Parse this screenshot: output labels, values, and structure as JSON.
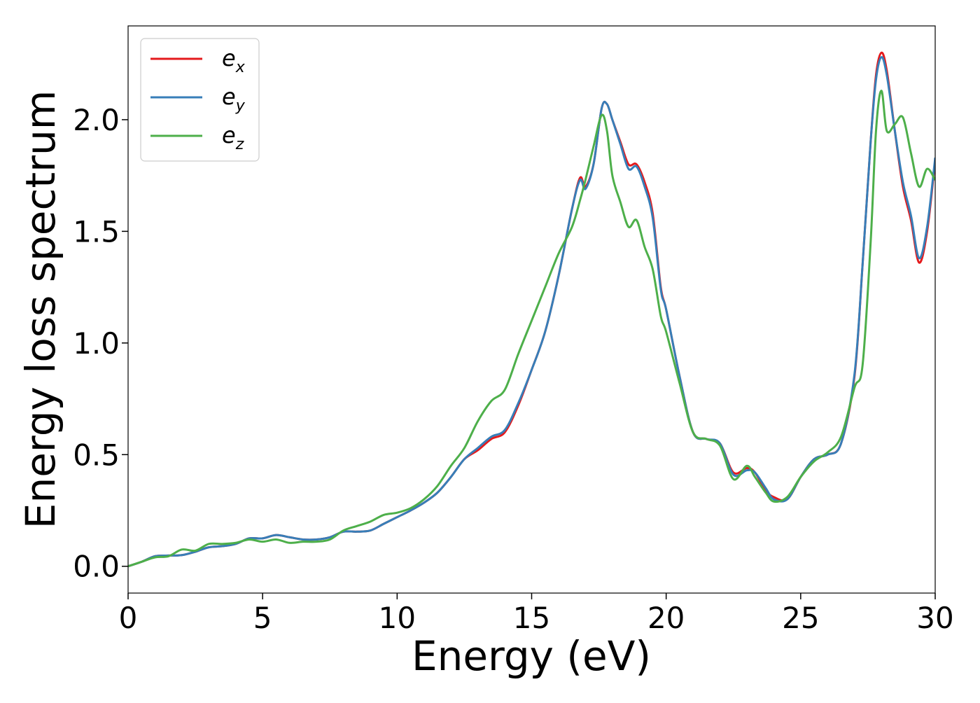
{
  "chart_data": {
    "type": "line",
    "title": "",
    "xlabel": "Energy (eV)",
    "ylabel": "Energy loss spectrum",
    "xlim": [
      0,
      30
    ],
    "ylim": [
      -0.12,
      2.42
    ],
    "xticks": [
      0,
      5,
      10,
      15,
      20,
      25,
      30
    ],
    "xtick_labels": [
      "0",
      "5",
      "10",
      "15",
      "20",
      "25",
      "30"
    ],
    "yticks": [
      0.0,
      0.5,
      1.0,
      1.5,
      2.0
    ],
    "ytick_labels": [
      "0.0",
      "0.5",
      "1.0",
      "1.5",
      "2.0"
    ],
    "grid": false,
    "legend_position": "top-left",
    "x": [
      0,
      0.5,
      1,
      1.5,
      2,
      2.5,
      3,
      3.5,
      4,
      4.5,
      5,
      5.5,
      6,
      6.5,
      7,
      7.5,
      8,
      8.5,
      9,
      9.5,
      10,
      10.5,
      11,
      11.5,
      12,
      12.5,
      13,
      13.5,
      14,
      14.5,
      15,
      15.5,
      16,
      16.5,
      16.8,
      17,
      17.3,
      17.6,
      17.8,
      18,
      18.3,
      18.6,
      18.9,
      19.2,
      19.5,
      19.8,
      20,
      20.5,
      21,
      21.5,
      22,
      22.5,
      23,
      23.3,
      23.7,
      24,
      24.5,
      25,
      25.5,
      26,
      26.5,
      27,
      27.3,
      27.6,
      27.8,
      28,
      28.2,
      28.5,
      28.8,
      29.1,
      29.4,
      29.7,
      30
    ],
    "series": [
      {
        "name": "e_x",
        "label_base": "e",
        "label_sub": "x",
        "color": "#e41a1c",
        "values": [
          0.0,
          0.02,
          0.045,
          0.048,
          0.05,
          0.065,
          0.085,
          0.09,
          0.1,
          0.125,
          0.125,
          0.14,
          0.13,
          0.12,
          0.12,
          0.13,
          0.155,
          0.155,
          0.16,
          0.19,
          0.22,
          0.25,
          0.285,
          0.33,
          0.4,
          0.48,
          0.52,
          0.57,
          0.6,
          0.72,
          0.88,
          1.05,
          1.3,
          1.6,
          1.74,
          1.7,
          1.8,
          2.05,
          2.07,
          2.0,
          1.9,
          1.8,
          1.8,
          1.72,
          1.58,
          1.25,
          1.15,
          0.85,
          0.6,
          0.57,
          0.55,
          0.42,
          0.44,
          0.42,
          0.34,
          0.31,
          0.3,
          0.4,
          0.48,
          0.5,
          0.55,
          0.85,
          1.35,
          1.9,
          2.2,
          2.3,
          2.22,
          1.95,
          1.7,
          1.55,
          1.36,
          1.5,
          1.82
        ]
      },
      {
        "name": "e_y",
        "label_base": "e",
        "label_sub": "y",
        "color": "#377eb8",
        "values": [
          0.0,
          0.02,
          0.045,
          0.048,
          0.05,
          0.065,
          0.085,
          0.09,
          0.1,
          0.125,
          0.125,
          0.14,
          0.13,
          0.12,
          0.12,
          0.13,
          0.155,
          0.155,
          0.16,
          0.19,
          0.22,
          0.25,
          0.285,
          0.33,
          0.4,
          0.48,
          0.53,
          0.58,
          0.61,
          0.73,
          0.88,
          1.05,
          1.3,
          1.6,
          1.73,
          1.69,
          1.8,
          2.05,
          2.07,
          2.0,
          1.89,
          1.78,
          1.79,
          1.7,
          1.56,
          1.24,
          1.15,
          0.85,
          0.6,
          0.57,
          0.55,
          0.41,
          0.43,
          0.42,
          0.35,
          0.3,
          0.3,
          0.4,
          0.48,
          0.5,
          0.55,
          0.86,
          1.35,
          1.9,
          2.18,
          2.28,
          2.2,
          1.95,
          1.72,
          1.57,
          1.38,
          1.52,
          1.83
        ]
      },
      {
        "name": "e_z",
        "label_base": "e",
        "label_sub": "z",
        "color": "#4daf4a",
        "values": [
          0.0,
          0.02,
          0.04,
          0.045,
          0.075,
          0.07,
          0.1,
          0.1,
          0.105,
          0.12,
          0.11,
          0.12,
          0.105,
          0.11,
          0.11,
          0.12,
          0.16,
          0.18,
          0.2,
          0.23,
          0.24,
          0.26,
          0.3,
          0.36,
          0.45,
          0.53,
          0.65,
          0.74,
          0.79,
          0.95,
          1.1,
          1.25,
          1.4,
          1.52,
          1.64,
          1.73,
          1.88,
          2.02,
          1.95,
          1.75,
          1.63,
          1.52,
          1.55,
          1.43,
          1.33,
          1.12,
          1.05,
          0.82,
          0.6,
          0.57,
          0.54,
          0.39,
          0.45,
          0.4,
          0.33,
          0.29,
          0.31,
          0.4,
          0.47,
          0.51,
          0.58,
          0.8,
          0.9,
          1.45,
          1.95,
          2.13,
          1.95,
          1.98,
          2.01,
          1.85,
          1.7,
          1.78,
          1.73
        ]
      }
    ]
  }
}
